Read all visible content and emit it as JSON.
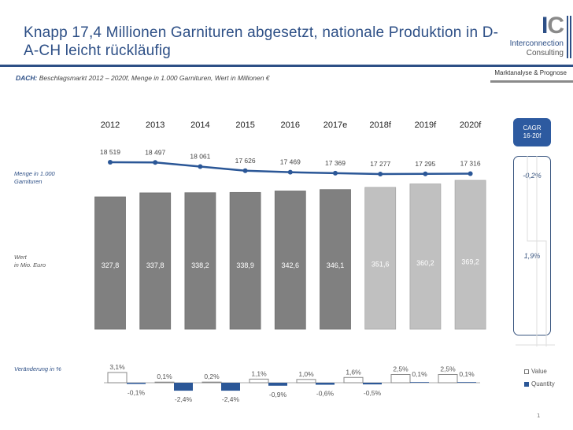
{
  "header": {
    "title": "Knapp 17,4 Millionen Garnituren abgesetzt, nationale Produktion in D-A-CH leicht rückläufig",
    "subtitle_bold": "DACH:",
    "subtitle_rest": " Beschlagsmarkt 2012 – 2020f, Menge in 1.000 Garnituren, Wert in Millionen €",
    "tagline": "Marktanalyse & Prognose"
  },
  "logo": {
    "mark_i": "I",
    "mark_c": "C",
    "name_line1": "Interconnection",
    "name_line2": "Consulting"
  },
  "side_labels": {
    "menge_line1": "Menge in 1.000",
    "menge_line2": "Garnituren",
    "wert_line1": "Wert",
    "wert_line2": "in Mio. Euro",
    "change": "Veränderung in %"
  },
  "cagr": {
    "header_line1": "CAGR",
    "header_line2": "16-20f",
    "quantity": "-0,2%",
    "value": "1,9%"
  },
  "legend": {
    "value_label": "Value",
    "quantity_label": "Quantity"
  },
  "page_number": "1",
  "colors": {
    "brand_blue": "#2d4f86",
    "line_blue": "#2b5797",
    "bar_actual": "#808080",
    "bar_forecast": "#c0c0c0",
    "change_quantity": "#2b5797"
  },
  "chart_data": [
    {
      "type": "line",
      "title": "Menge in 1.000 Garnituren",
      "categories": [
        "2012",
        "2013",
        "2014",
        "2015",
        "2016",
        "2017e",
        "2018f",
        "2019f",
        "2020f"
      ],
      "values": [
        18519,
        18497,
        18061,
        17626,
        17469,
        17369,
        17277,
        17295,
        17316
      ],
      "labels": [
        "18 519",
        "18 497",
        "18 061",
        "17 626",
        "17 469",
        "17 369",
        "17 277",
        "17 295",
        "17 316"
      ]
    },
    {
      "type": "bar",
      "title": "Wert in Mio. Euro",
      "categories": [
        "2012",
        "2013",
        "2014",
        "2015",
        "2016",
        "2017e",
        "2018f",
        "2019f",
        "2020f"
      ],
      "values": [
        327.8,
        337.8,
        338.2,
        338.9,
        342.6,
        346.1,
        351.6,
        360.2,
        369.2
      ],
      "labels": [
        "327,8",
        "337,8",
        "338,2",
        "338,9",
        "342,6",
        "346,1",
        "351,6",
        "360,2",
        "369,2"
      ],
      "forecast": [
        false,
        false,
        false,
        false,
        false,
        false,
        true,
        true,
        true
      ]
    },
    {
      "type": "bar",
      "title": "Veränderung in %",
      "categories": [
        "2013",
        "2014",
        "2015",
        "2016",
        "2017e",
        "2018f",
        "2019f",
        "2020f"
      ],
      "series": [
        {
          "name": "Value",
          "values": [
            3.1,
            0.1,
            0.2,
            1.1,
            1.0,
            1.6,
            2.5,
            2.5
          ],
          "labels": [
            "3,1%",
            "0,1%",
            "0,2%",
            "1,1%",
            "1,0%",
            "1,6%",
            "2,5%",
            "2,5%"
          ]
        },
        {
          "name": "Quantity",
          "values": [
            -0.1,
            -2.4,
            -2.4,
            -0.9,
            -0.6,
            -0.5,
            0.1,
            0.1
          ],
          "labels": [
            "-0,1%",
            "-2,4%",
            "-2,4%",
            "-0,9%",
            "-0,6%",
            "-0,5%",
            "0,1%",
            "0,1%"
          ]
        }
      ],
      "legend": "right"
    }
  ]
}
